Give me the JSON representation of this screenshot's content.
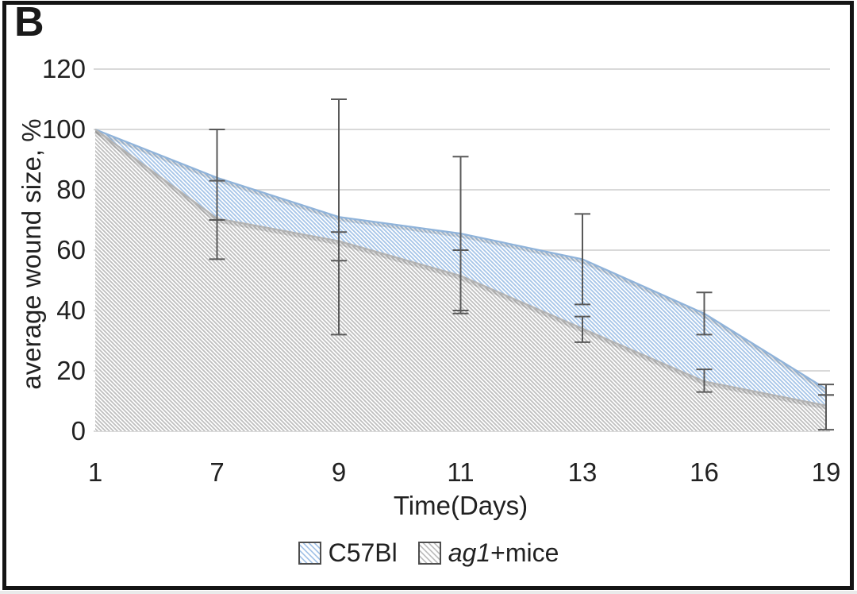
{
  "panel_label": "B",
  "chart_data": {
    "type": "area",
    "title": "",
    "xlabel": "Time(Days)",
    "ylabel": "average wound size, %",
    "categories": [
      1,
      7,
      9,
      11,
      13,
      16,
      19
    ],
    "y_ticks": [
      0,
      20,
      40,
      60,
      80,
      100,
      120
    ],
    "ylim": [
      0,
      120
    ],
    "grid": true,
    "gridline_color": "#d9d9d9",
    "error_bar_color": "#595959",
    "legend_position": "bottom",
    "background_color": "#ffffff",
    "frame_color": "#141414",
    "series": [
      {
        "name": "C57Bl",
        "label_parts": [
          {
            "text": "C57Bl",
            "italic": false
          }
        ],
        "hatch_color": "#a6c5e8",
        "edge_color": "#8fb3da",
        "values": [
          100,
          84,
          71,
          65.5,
          57,
          39,
          14
        ],
        "error_low": [
          null,
          70,
          32,
          40,
          42,
          32,
          12
        ],
        "error_high": [
          null,
          100,
          110,
          91,
          72,
          46,
          15.5
        ]
      },
      {
        "name": "ag1+mice",
        "label_parts": [
          {
            "text": "ag1",
            "italic": true
          },
          {
            "text": "+mice",
            "italic": false
          }
        ],
        "hatch_color": "#bfbfbf",
        "edge_color": "#b3b3b3",
        "values": [
          100,
          70.5,
          63,
          51.5,
          34,
          16.5,
          8.5
        ],
        "error_low": [
          null,
          57,
          56.5,
          39,
          29.5,
          13,
          0.5
        ],
        "error_high": [
          null,
          83,
          66,
          60,
          38,
          20.5,
          12
        ]
      }
    ]
  }
}
